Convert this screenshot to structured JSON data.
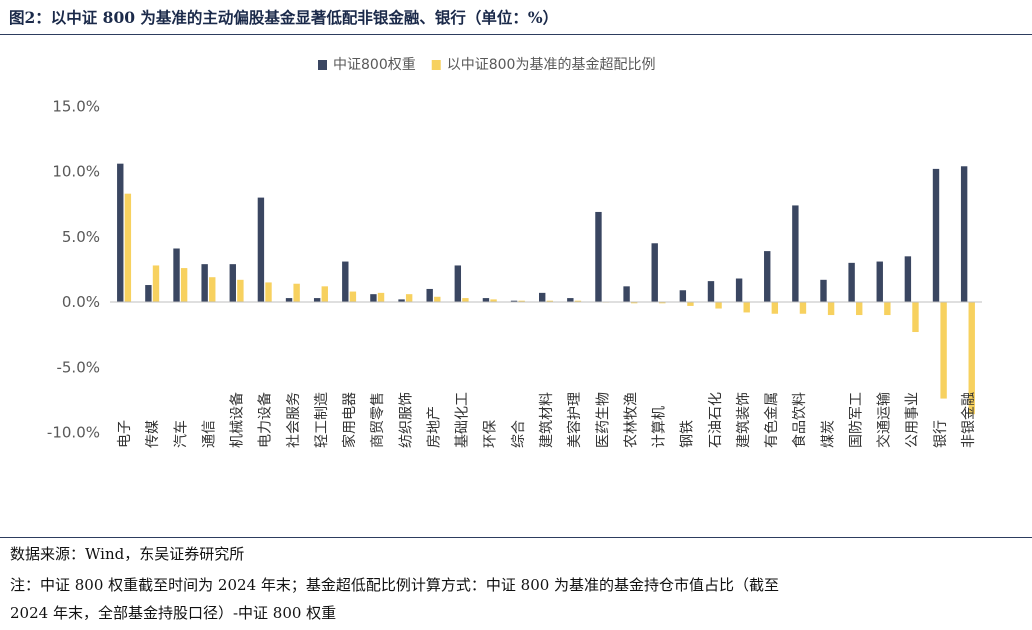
{
  "figure": {
    "title": "图2：以中证 800 为基准的主动偏股基金显著低配非银金融、银行（单位：%）",
    "source": "数据来源：Wind，东吴证券研究所",
    "note_line1": "注：中证 800 权重截至时间为 2024 年末；基金超低配比例计算方式：中证 800 为基准的基金持仓市值占比（截至",
    "note_line2": "2024 年末，全部基金持股口径）-中证 800 权重"
  },
  "colors": {
    "series_weight": "#3a4661",
    "series_overweight": "#f7d15f",
    "axis": "#bfbfbf"
  },
  "chart_data": {
    "type": "bar",
    "categories": [
      "电子",
      "传媒",
      "汽车",
      "通信",
      "机械设备",
      "电力设备",
      "社会服务",
      "轻工制造",
      "家用电器",
      "商贸零售",
      "纺织服饰",
      "房地产",
      "基础化工",
      "环保",
      "综合",
      "建筑材料",
      "美容护理",
      "医药生物",
      "农林牧渔",
      "计算机",
      "钢铁",
      "石油石化",
      "建筑装饰",
      "有色金属",
      "食品饮料",
      "煤炭",
      "国防军工",
      "交通运输",
      "公用事业",
      "银行",
      "非银金融"
    ],
    "series": [
      {
        "name": "中证800权重",
        "values": [
          10.6,
          1.3,
          4.1,
          2.9,
          2.9,
          8.0,
          0.3,
          0.3,
          3.1,
          0.6,
          0.2,
          1.0,
          2.8,
          0.3,
          0.1,
          0.7,
          0.3,
          6.9,
          1.2,
          4.5,
          0.9,
          1.6,
          1.8,
          3.9,
          7.4,
          1.7,
          3.0,
          3.1,
          3.5,
          10.2,
          10.4
        ]
      },
      {
        "name": "以中证800为基准的基金超配比例",
        "values": [
          8.3,
          2.8,
          2.6,
          1.9,
          1.7,
          1.5,
          1.4,
          1.2,
          0.8,
          0.7,
          0.6,
          0.4,
          0.3,
          0.2,
          0.1,
          0.1,
          0.1,
          0.0,
          -0.1,
          -0.1,
          -0.3,
          -0.5,
          -0.8,
          -0.9,
          -0.9,
          -1.0,
          -1.0,
          -1.0,
          -2.3,
          -7.4,
          -8.6
        ]
      }
    ],
    "ylim": [
      -10,
      15
    ],
    "yticks": [
      -10,
      -5,
      0,
      5,
      10,
      15
    ],
    "ytick_labels": [
      "-10.0%",
      "-5.0%",
      "0.0%",
      "5.0%",
      "10.0%",
      "15.0%"
    ],
    "legend_position": "top-center",
    "grid": false
  }
}
